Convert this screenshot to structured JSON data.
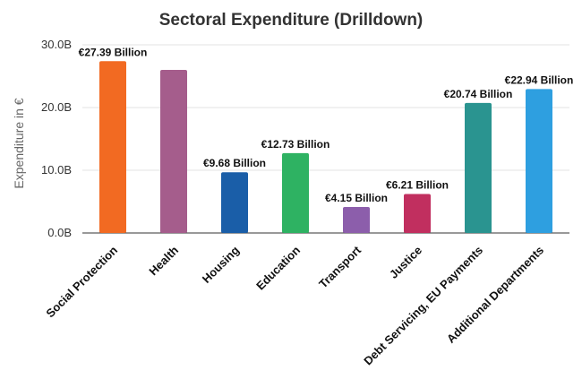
{
  "chart_data": {
    "type": "bar",
    "title": "Sectoral Expenditure (Drilldown)",
    "xlabel": "",
    "ylabel": "Expenditure in €",
    "ylim": [
      0,
      30
    ],
    "yticks": [
      {
        "value": 0,
        "label": "0.0B"
      },
      {
        "value": 10,
        "label": "10.0B"
      },
      {
        "value": 20,
        "label": "20.0B"
      },
      {
        "value": 30,
        "label": "30.0B"
      }
    ],
    "grid": true,
    "legend": "none",
    "categories": [
      "Social Protection",
      "Health",
      "Housing",
      "Education",
      "Transport",
      "Justice",
      "Debt Servicing, EU Payments",
      "Additional Departments"
    ],
    "values": [
      27.39,
      26.0,
      9.68,
      12.73,
      4.15,
      6.21,
      20.74,
      22.94
    ],
    "data_labels": [
      "€27.39 Billion",
      "",
      "€9.68 Billion",
      "€12.73 Billion",
      "€4.15 Billion",
      "€6.21 Billion",
      "€20.74 Billion",
      "€22.94 Billion"
    ],
    "colors": [
      "#f26a22",
      "#a55d8c",
      "#1a5ea8",
      "#2eb262",
      "#8c5eab",
      "#c12f5f",
      "#2a9490",
      "#2e9fe0"
    ]
  }
}
